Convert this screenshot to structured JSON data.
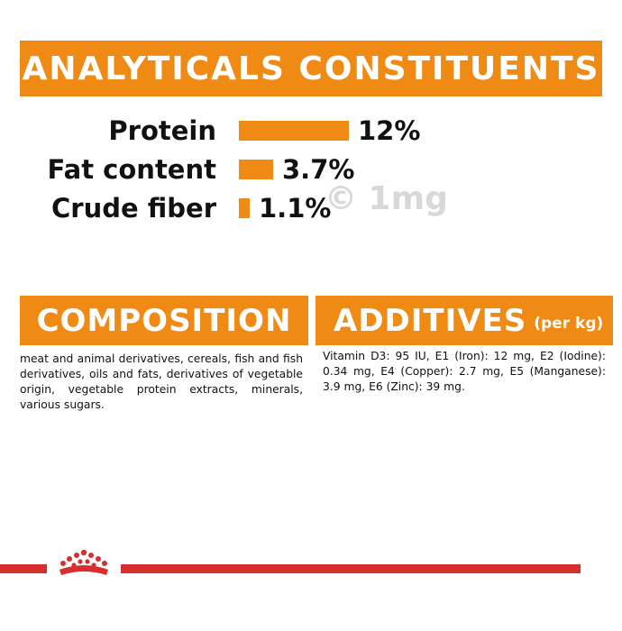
{
  "analytics": {
    "title": "ANALYTICALS CONSTITUENTS",
    "rows": [
      {
        "label": "Protein",
        "value": "12%",
        "percent": 12
      },
      {
        "label": "Fat content",
        "value": "3.7%",
        "percent": 3.7
      },
      {
        "label": "Crude fiber",
        "value": "1.1%",
        "percent": 1.1
      }
    ]
  },
  "composition": {
    "title": "COMPOSITION",
    "text": "meat and animal derivatives, cereals, fish and fish derivatives, oils and fats, derivatives of vegetable origin, vegetable protein extracts, minerals, various sugars."
  },
  "additives": {
    "title": "ADDITIVES",
    "subtitle": "(per kg)",
    "text": "Vitamin D3: 95 IU, E1 (Iron): 12 mg, E2 (Iodine): 0.34 mg, E4 (Copper): 2.7 mg, E5 (Manganese): 3.9 mg, E6 (Zinc): 39 mg."
  },
  "watermark": "© 1mg",
  "colors": {
    "accent": "#ef8a14",
    "footer_red": "#d92e2e"
  },
  "icons": {
    "brand": "crown-logo-icon"
  }
}
